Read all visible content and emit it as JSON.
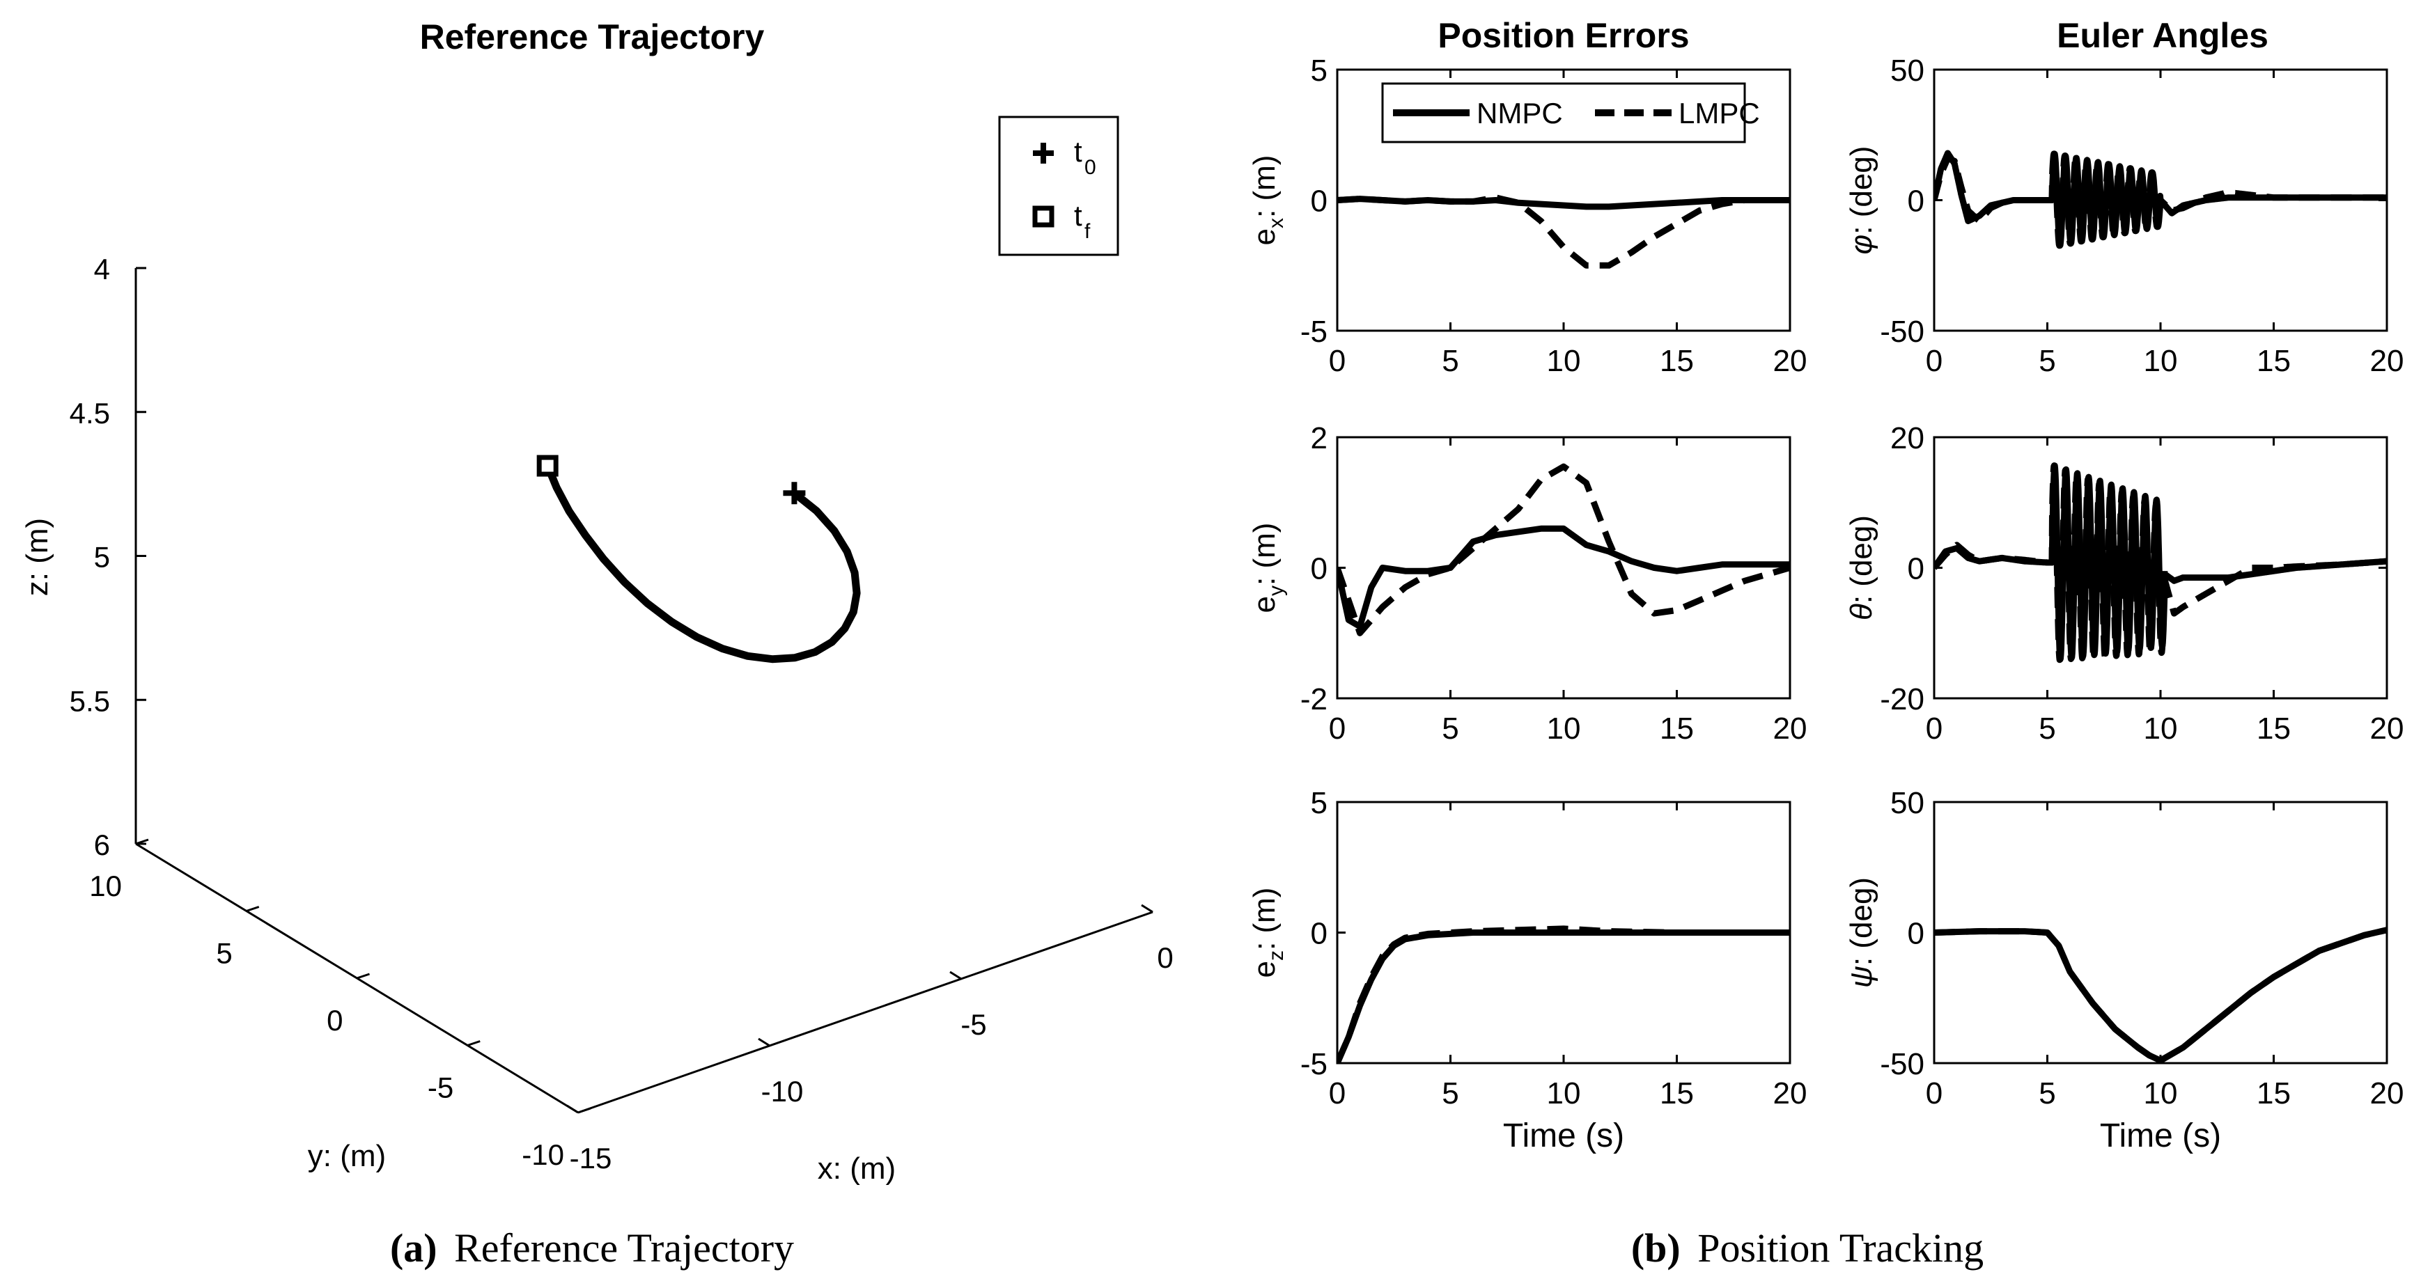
{
  "captions": [
    {
      "letter": "(a)",
      "text": "Reference Trajectory"
    },
    {
      "letter": "(b)",
      "text": "Position Tracking"
    }
  ],
  "column_titles": [
    "Position Errors",
    "Euler Angles"
  ],
  "legend": {
    "nmpc": "NMPC",
    "lmpc": "LMPC"
  },
  "colors": {
    "line": "#000000",
    "background": "#ffffff"
  },
  "chart_data": [
    {
      "id": "traj3d",
      "type": "line",
      "title": "Reference Trajectory",
      "xlabel": "x: (m)",
      "ylabel": "y: (m)",
      "zlabel": "z: (m)",
      "xticks": [
        "0",
        "-5",
        "-10",
        "-15"
      ],
      "yticks": [
        "10",
        "5",
        "0",
        "-5",
        "-10"
      ],
      "zticks": [
        "4",
        "4.5",
        "5",
        "5.5",
        "6"
      ],
      "legend": [
        {
          "marker": "plus",
          "label": "t",
          "sub": "0"
        },
        {
          "marker": "square",
          "label": "t",
          "sub": "f"
        }
      ],
      "series": [
        {
          "points": [
            [
              -6.94,
              -6.61
            ],
            [
              -7.48,
              -5.42
            ],
            [
              -8.0,
              -4.11
            ],
            [
              -8.47,
              -2.7
            ],
            [
              -8.89,
              -1.27
            ],
            [
              -9.23,
              0.16
            ],
            [
              -9.47,
              1.54
            ],
            [
              -9.59,
              2.81
            ],
            [
              -9.59,
              3.95
            ],
            [
              -9.46,
              4.92
            ],
            [
              -9.2,
              5.69
            ],
            [
              -8.81,
              6.24
            ],
            [
              -8.31,
              6.55
            ],
            [
              -7.72,
              6.61
            ],
            [
              -7.06,
              6.42
            ],
            [
              -6.36,
              5.99
            ],
            [
              -5.64,
              5.35
            ],
            [
              -4.95,
              4.51
            ],
            [
              -4.32,
              3.51
            ],
            [
              -3.78,
              2.39
            ],
            [
              -3.35,
              1.19
            ],
            [
              -3.05,
              -0.04
            ],
            [
              -2.91,
              -1.25
            ]
          ]
        }
      ]
    },
    {
      "id": "ex",
      "type": "line",
      "title": "Position Errors",
      "xlabel": "",
      "ylabel": "e",
      "ylabel_sub": "x",
      "ylabel_unit": ": (m)",
      "xlim": [
        0,
        20
      ],
      "ylim": [
        -5,
        5
      ],
      "xticks": [
        "0",
        "5",
        "10",
        "15",
        "20"
      ],
      "yticks": [
        "-5",
        "0",
        "5"
      ],
      "x": [
        0,
        1,
        2,
        3,
        4,
        5,
        6,
        7,
        8,
        9,
        10,
        11,
        12,
        13,
        14,
        15,
        16,
        17,
        18,
        19,
        20
      ],
      "series": [
        {
          "name": "NMPC",
          "style": "solid",
          "values": [
            0,
            0.05,
            0,
            -0.05,
            0,
            -0.05,
            -0.05,
            0,
            -0.1,
            -0.15,
            -0.2,
            -0.25,
            -0.25,
            -0.2,
            -0.15,
            -0.1,
            -0.05,
            0,
            0,
            0,
            0
          ]
        },
        {
          "name": "LMPC",
          "style": "dashed",
          "values": [
            0,
            0.05,
            0,
            -0.05,
            0,
            -0.05,
            -0.05,
            0.1,
            -0.1,
            -0.8,
            -1.8,
            -2.5,
            -2.5,
            -2.0,
            -1.4,
            -0.9,
            -0.4,
            -0.15,
            0,
            0,
            0
          ]
        }
      ]
    },
    {
      "id": "ey",
      "type": "line",
      "title": "",
      "xlabel": "",
      "ylabel": "e",
      "ylabel_sub": "y",
      "ylabel_unit": ": (m)",
      "xlim": [
        0,
        20
      ],
      "ylim": [
        -2,
        2
      ],
      "xticks": [
        "0",
        "5",
        "10",
        "15",
        "20"
      ],
      "yticks": [
        "-2",
        "0",
        "2"
      ],
      "x": [
        0,
        0.5,
        1,
        1.5,
        2,
        3,
        4,
        5,
        6,
        7,
        8,
        9,
        10,
        11,
        12,
        13,
        14,
        15,
        16,
        17,
        18,
        19,
        20
      ],
      "series": [
        {
          "name": "NMPC",
          "style": "solid",
          "values": [
            0,
            -0.8,
            -0.9,
            -0.3,
            0,
            -0.05,
            -0.05,
            0,
            0.4,
            0.5,
            0.55,
            0.6,
            0.6,
            0.35,
            0.25,
            0.1,
            0,
            -0.05,
            0,
            0.05,
            0.05,
            0.05,
            0.05
          ]
        },
        {
          "name": "LMPC",
          "style": "dashed",
          "values": [
            0,
            -0.5,
            -1.0,
            -0.8,
            -0.6,
            -0.3,
            -0.1,
            0,
            0.3,
            0.6,
            0.9,
            1.35,
            1.55,
            1.3,
            0.4,
            -0.4,
            -0.7,
            -0.65,
            -0.5,
            -0.35,
            -0.2,
            -0.1,
            0
          ]
        }
      ]
    },
    {
      "id": "ez",
      "type": "line",
      "title": "",
      "xlabel": "Time (s)",
      "ylabel": "e",
      "ylabel_sub": "z",
      "ylabel_unit": ": (m)",
      "xlim": [
        0,
        20
      ],
      "ylim": [
        -5,
        5
      ],
      "xticks": [
        "0",
        "5",
        "10",
        "15",
        "20"
      ],
      "yticks": [
        "-5",
        "0",
        "5"
      ],
      "x": [
        0,
        0.5,
        1,
        1.5,
        2,
        2.5,
        3,
        4,
        5,
        6,
        8,
        10,
        12,
        15,
        20
      ],
      "series": [
        {
          "name": "NMPC",
          "style": "solid",
          "values": [
            -5,
            -4.0,
            -2.8,
            -1.8,
            -1.0,
            -0.5,
            -0.25,
            -0.1,
            -0.05,
            0,
            0,
            0,
            0,
            0,
            0
          ]
        },
        {
          "name": "LMPC",
          "style": "dashed",
          "values": [
            -5,
            -4.0,
            -2.7,
            -1.7,
            -0.9,
            -0.45,
            -0.2,
            -0.05,
            0,
            0.05,
            0.1,
            0.15,
            0.05,
            0,
            0
          ]
        }
      ]
    },
    {
      "id": "phi",
      "type": "line",
      "title": "Euler Angles",
      "xlabel": "",
      "ylabel": "φ",
      "ylabel_sub": "",
      "ylabel_unit": ": (deg)",
      "xlim": [
        0,
        20
      ],
      "ylim": [
        -50,
        50
      ],
      "xticks": [
        "0",
        "5",
        "10",
        "15",
        "20"
      ],
      "yticks": [
        "-50",
        "0",
        "50"
      ],
      "osc": {
        "start": 5.2,
        "end": 10,
        "period": 0.48,
        "amp_start": 18,
        "amp_end": 10
      },
      "x": [
        0,
        0.3,
        0.6,
        0.9,
        1.2,
        1.5,
        2,
        2.5,
        3,
        3.5,
        4,
        4.5,
        5,
        5.2,
        10,
        10.5,
        11,
        12,
        13,
        14,
        15,
        16,
        18,
        20
      ],
      "series": [
        {
          "name": "NMPC",
          "style": "solid",
          "values": [
            0,
            12,
            18,
            14,
            2,
            -8,
            -6,
            -2,
            -1,
            0,
            0,
            0,
            0,
            0,
            0,
            -5,
            -2,
            0,
            1,
            1,
            1,
            1,
            1,
            1
          ]
        },
        {
          "name": "LMPC",
          "style": "dashed",
          "values": [
            0,
            10,
            16,
            15,
            5,
            -4,
            -8,
            -3,
            -1,
            0,
            0,
            0,
            0,
            0,
            0,
            -4,
            -3,
            1,
            3,
            2,
            1,
            1,
            1,
            1
          ]
        }
      ]
    },
    {
      "id": "theta",
      "type": "line",
      "title": "",
      "xlabel": "",
      "ylabel": "θ",
      "ylabel_sub": "",
      "ylabel_unit": ": (deg)",
      "xlim": [
        0,
        20
      ],
      "ylim": [
        -20,
        20
      ],
      "xticks": [
        "0",
        "5",
        "10",
        "15",
        "20"
      ],
      "yticks": [
        "-20",
        "0",
        "20"
      ],
      "osc": {
        "start": 5.2,
        "end": 10.2,
        "period": 0.5,
        "amp_start": 15,
        "amp_end": 11
      },
      "x": [
        0,
        0.5,
        1,
        1.5,
        2,
        3,
        4,
        5,
        5.2,
        10.2,
        10.6,
        11,
        12,
        13,
        14,
        15,
        16,
        18,
        20
      ],
      "series": [
        {
          "name": "NMPC",
          "style": "solid",
          "values": [
            0,
            2.5,
            3,
            1.5,
            1,
            1.5,
            1,
            0.8,
            0.8,
            -1,
            -2,
            -1.5,
            -1.5,
            -1.5,
            -1,
            -0.5,
            0,
            0.5,
            1
          ]
        },
        {
          "name": "LMPC",
          "style": "dashed",
          "values": [
            0,
            2,
            3.5,
            2,
            1,
            1.5,
            1.2,
            0.8,
            0.8,
            -2,
            -7,
            -6,
            -4,
            -2,
            0,
            0,
            0.2,
            0.5,
            1
          ]
        }
      ]
    },
    {
      "id": "psi",
      "type": "line",
      "title": "",
      "xlabel": "Time (s)",
      "ylabel": "ψ",
      "ylabel_sub": "",
      "ylabel_unit": ": (deg)",
      "xlim": [
        0,
        20
      ],
      "ylim": [
        -50,
        50
      ],
      "xticks": [
        "0",
        "5",
        "10",
        "15",
        "20"
      ],
      "yticks": [
        "-50",
        "0",
        "50"
      ],
      "x": [
        0,
        2,
        4,
        5,
        5.5,
        6,
        7,
        8,
        9,
        9.5,
        10,
        11,
        12,
        13,
        14,
        15,
        16,
        17,
        18,
        19,
        20
      ],
      "series": [
        {
          "name": "NMPC",
          "style": "solid",
          "values": [
            0,
            0.5,
            0.5,
            0,
            -5,
            -15,
            -27,
            -37,
            -44,
            -47,
            -49,
            -44,
            -37,
            -30,
            -23,
            -17,
            -12,
            -7,
            -4,
            -1,
            1
          ]
        },
        {
          "name": "LMPC",
          "style": "dashed",
          "values": [
            0,
            0.5,
            0.5,
            0,
            -5,
            -15,
            -27,
            -37,
            -44,
            -47,
            -49,
            -44,
            -37,
            -30,
            -23,
            -17,
            -12,
            -7,
            -4,
            -1,
            1
          ]
        }
      ]
    }
  ]
}
